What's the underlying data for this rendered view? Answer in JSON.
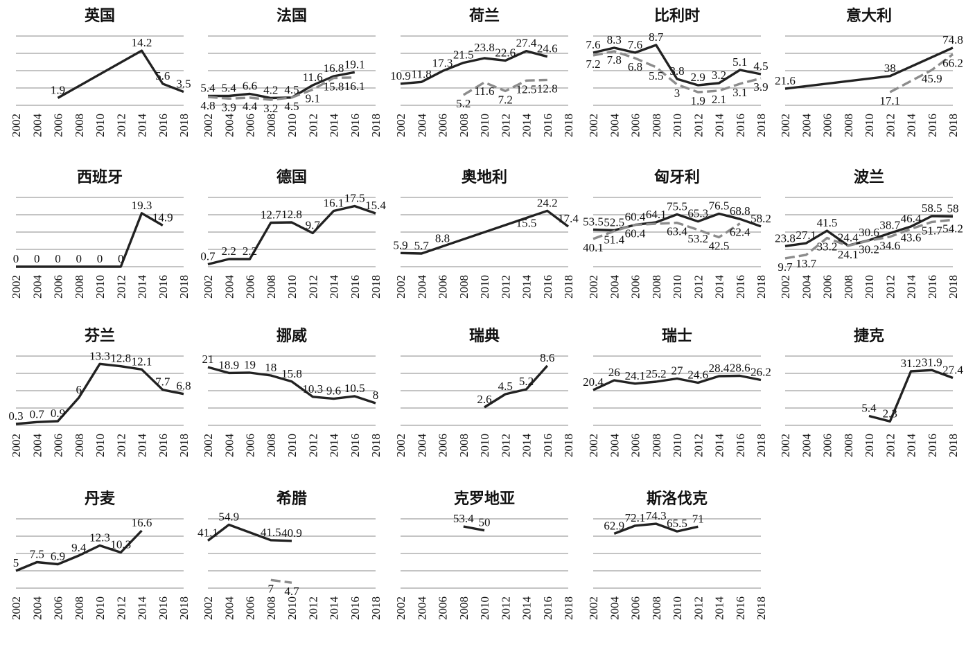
{
  "x_ticks": [
    "2002",
    "2004",
    "2006",
    "2008",
    "2010",
    "2012",
    "2014",
    "2016",
    "2018"
  ],
  "colors": {
    "primary": "#222222",
    "secondary": "#8c8c8c"
  },
  "chart_data": [
    {
      "type": "line",
      "title": "英国",
      "ylim": [
        0,
        18
      ],
      "series": [
        {
          "x": [
            2006,
            2014,
            2016,
            2018
          ],
          "values": [
            1.9,
            14.2,
            5.6,
            3.5
          ],
          "style": "solid"
        }
      ]
    },
    {
      "type": "line",
      "title": "法国",
      "ylim": [
        0,
        40
      ],
      "series": [
        {
          "x": [
            2002,
            2004,
            2006,
            2008,
            2010,
            2012,
            2014,
            2016
          ],
          "values": [
            5.4,
            5.4,
            6.6,
            4.2,
            4.5,
            11.6,
            16.8,
            19.1
          ],
          "style": "solid"
        },
        {
          "x": [
            2002,
            2004,
            2006,
            2008,
            2010,
            2012,
            2014,
            2016
          ],
          "values": [
            4.8,
            3.9,
            4.4,
            3.2,
            4.5,
            9.1,
            15.8,
            16.1
          ],
          "style": "dashed"
        }
      ]
    },
    {
      "type": "line",
      "title": "荷兰",
      "ylim": [
        0,
        35
      ],
      "series": [
        {
          "x": [
            2002,
            2004,
            2006,
            2008,
            2010,
            2012,
            2014,
            2016
          ],
          "values": [
            10.9,
            11.8,
            17.3,
            21.5,
            23.8,
            22.6,
            27.4,
            24.6
          ],
          "style": "solid"
        },
        {
          "x": [
            2008,
            2010,
            2012,
            2014,
            2016
          ],
          "values": [
            5.2,
            11.6,
            7.2,
            12.5,
            12.8
          ],
          "style": "dashed"
        }
      ]
    },
    {
      "type": "line",
      "title": "比利时",
      "ylim": [
        0,
        10
      ],
      "series": [
        {
          "x": [
            2002,
            2004,
            2006,
            2008,
            2010,
            2012,
            2014,
            2016,
            2018
          ],
          "values": [
            7.6,
            8.3,
            7.6,
            8.7,
            3.8,
            2.9,
            3.2,
            5.1,
            4.5
          ],
          "style": "solid"
        },
        {
          "x": [
            2002,
            2004,
            2006,
            2008,
            2010,
            2012,
            2014,
            2016,
            2018
          ],
          "values": [
            7.2,
            7.8,
            6.8,
            5.5,
            3,
            1.9,
            2.1,
            3.1,
            3.9
          ],
          "style": "dashed"
        }
      ]
    },
    {
      "type": "line",
      "title": "意大利",
      "ylim": [
        0,
        90
      ],
      "series": [
        {
          "x": [
            2002,
            2012,
            2018
          ],
          "values": [
            21.6,
            38,
            74.8
          ],
          "style": "solid"
        },
        {
          "x": [
            2012,
            2016,
            2018
          ],
          "values": [
            17.1,
            45.9,
            66.2
          ],
          "style": "dashed"
        }
      ]
    },
    {
      "type": "line",
      "title": "西班牙",
      "ylim": [
        0,
        25
      ],
      "series": [
        {
          "x": [
            2002,
            2004,
            2006,
            2008,
            2010,
            2012,
            2014,
            2016
          ],
          "values": [
            0,
            0,
            0,
            0,
            0,
            0,
            19.3,
            14.9
          ],
          "style": "solid"
        }
      ]
    },
    {
      "type": "line",
      "title": "德国",
      "ylim": [
        0,
        20
      ],
      "series": [
        {
          "x": [
            2002,
            2004,
            2006,
            2008,
            2010,
            2012,
            2014,
            2016,
            2018
          ],
          "values": [
            0.7,
            2.2,
            2.2,
            12.7,
            12.8,
            9.7,
            16.1,
            17.5,
            15.4
          ],
          "style": "solid"
        }
      ]
    },
    {
      "type": "line",
      "title": "奥地利",
      "ylim": [
        0,
        30
      ],
      "series": [
        {
          "x": [
            2002,
            2004,
            2006,
            2016,
            2018
          ],
          "values": [
            5.9,
            5.7,
            8.8,
            24.2,
            17.4
          ],
          "extra_labels": [
            {
              "x": 2014,
              "value": 15.5
            }
          ],
          "style": "solid"
        }
      ]
    },
    {
      "type": "line",
      "title": "匈牙利",
      "ylim": [
        0,
        100
      ],
      "series": [
        {
          "x": [
            2002,
            2004,
            2006,
            2008,
            2010,
            2012,
            2014,
            2016,
            2018
          ],
          "values": [
            53.5,
            52.5,
            60.4,
            64.1,
            75.5,
            65.3,
            76.5,
            68.8,
            58.2
          ],
          "style": "solid"
        },
        {
          "x": [
            2002,
            2004,
            2006,
            2010,
            2012,
            2014,
            2016
          ],
          "values": [
            40.1,
            51.4,
            60.4,
            63.4,
            53.2,
            42.5,
            62.4
          ],
          "style": "dashed"
        }
      ]
    },
    {
      "type": "line",
      "title": "波兰",
      "ylim": [
        0,
        80
      ],
      "series": [
        {
          "x": [
            2002,
            2004,
            2006,
            2008,
            2010,
            2012,
            2014,
            2016,
            2018
          ],
          "values": [
            23.8,
            27.1,
            41.5,
            24.4,
            30.6,
            38.7,
            46.4,
            58.5,
            58
          ],
          "style": "solid"
        },
        {
          "x": [
            2002,
            2004,
            2006,
            2008,
            2010,
            2012,
            2014,
            2016,
            2018
          ],
          "values": [
            9.7,
            13.7,
            33.2,
            24.1,
            30.2,
            34.6,
            43.6,
            51.7,
            54.2
          ],
          "style": "dashed"
        }
      ]
    },
    {
      "type": "line",
      "title": "芬兰",
      "ylim": [
        0,
        15
      ],
      "series": [
        {
          "x": [
            2002,
            2004,
            2006,
            2008,
            2010,
            2012,
            2014,
            2016,
            2018
          ],
          "values": [
            0.3,
            0.7,
            0.9,
            6,
            13.3,
            12.8,
            12.1,
            7.7,
            6.8
          ],
          "style": "solid"
        }
      ]
    },
    {
      "type": "line",
      "title": "挪威",
      "ylim": [
        0,
        25
      ],
      "series": [
        {
          "x": [
            2002,
            2004,
            2006,
            2008,
            2010,
            2012,
            2014,
            2016,
            2018
          ],
          "values": [
            21,
            18.9,
            19,
            18,
            15.8,
            10.3,
            9.6,
            10.5,
            8
          ],
          "style": "solid"
        }
      ]
    },
    {
      "type": "line",
      "title": "瑞典",
      "ylim": [
        0,
        10
      ],
      "series": [
        {
          "x": [
            2010,
            2012,
            2014,
            2016
          ],
          "values": [
            2.6,
            4.5,
            5.2,
            8.6
          ],
          "style": "solid"
        }
      ]
    },
    {
      "type": "line",
      "title": "瑞士",
      "ylim": [
        0,
        40
      ],
      "series": [
        {
          "x": [
            2002,
            2004,
            2006,
            2008,
            2010,
            2012,
            2014,
            2016,
            2018
          ],
          "values": [
            20.4,
            26,
            24.1,
            25.2,
            27,
            24.6,
            28.4,
            28.6,
            26.2
          ],
          "style": "solid"
        }
      ]
    },
    {
      "type": "line",
      "title": "捷克",
      "ylim": [
        0,
        40
      ],
      "series": [
        {
          "x": [
            2010,
            2012,
            2014,
            2016,
            2018
          ],
          "values": [
            5.4,
            2.3,
            31.2,
            31.9,
            27.4
          ],
          "style": "solid"
        }
      ]
    },
    {
      "type": "line",
      "title": "丹麦",
      "ylim": [
        0,
        20
      ],
      "series": [
        {
          "x": [
            2002,
            2004,
            2006,
            2008,
            2010,
            2012,
            2014
          ],
          "values": [
            5,
            7.5,
            6.9,
            9.4,
            12.3,
            10.3,
            16.6
          ],
          "style": "solid"
        }
      ]
    },
    {
      "type": "line",
      "title": "希腊",
      "ylim": [
        0,
        60
      ],
      "series": [
        {
          "x": [
            2002,
            2004,
            2008,
            2010
          ],
          "values": [
            41.1,
            54.9,
            41.5,
            40.9
          ],
          "style": "solid"
        },
        {
          "x": [
            2008,
            2010
          ],
          "values": [
            7,
            4.7
          ],
          "style": "dashed"
        }
      ]
    },
    {
      "type": "line",
      "title": "克罗地亚",
      "ylim": [
        0,
        60
      ],
      "series": [
        {
          "x": [
            2008,
            2010
          ],
          "values": [
            53.4,
            50
          ],
          "style": "solid"
        }
      ]
    },
    {
      "type": "line",
      "title": "斯洛伐克",
      "ylim": [
        0,
        80
      ],
      "series": [
        {
          "x": [
            2004,
            2006,
            2008,
            2010,
            2012
          ],
          "values": [
            62.9,
            72.1,
            74.3,
            65.5,
            71
          ],
          "style": "solid"
        }
      ]
    }
  ]
}
